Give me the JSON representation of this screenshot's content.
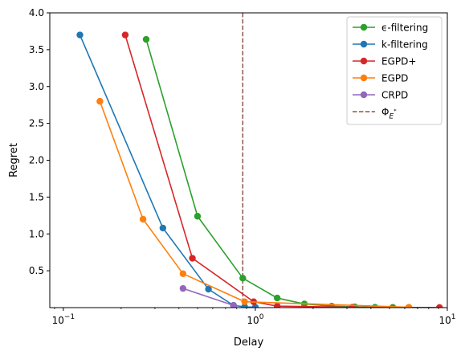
{
  "chart_data": {
    "type": "line",
    "title": "",
    "xlabel": "Delay",
    "ylabel": "Regret",
    "xscale": "log",
    "xlim": [
      0.085,
      10
    ],
    "ylim": [
      0,
      4.0
    ],
    "grid": false,
    "legend_position": "top-right",
    "xtick_labels": [
      {
        "value": 0.1,
        "base": "10",
        "exp": "−1"
      },
      {
        "value": 1,
        "base": "10",
        "exp": "0"
      },
      {
        "value": 10,
        "base": "10",
        "exp": "1"
      }
    ],
    "yticks": [
      0.5,
      1.0,
      1.5,
      2.0,
      2.5,
      3.0,
      3.5,
      4.0
    ],
    "ytick_labels": [
      "0.5",
      "1.0",
      "1.5",
      "2.0",
      "2.5",
      "3.0",
      "3.5",
      "4.0"
    ],
    "series": [
      {
        "name": "ϵ-filtering",
        "color": "#2ca02c",
        "x": [
          0.27,
          0.5,
          0.86,
          1.3,
          1.8,
          2.5,
          3.3,
          4.2,
          5.2,
          6.3,
          9.1
        ],
        "y": [
          3.64,
          1.24,
          0.4,
          0.13,
          0.05,
          0.02,
          0.01,
          0.005,
          0.003,
          0.002,
          0.001
        ]
      },
      {
        "name": "k-filtering",
        "color": "#1f77b4",
        "x": [
          0.122,
          0.33,
          0.57,
          0.77,
          0.88,
          1.0
        ],
        "y": [
          3.7,
          1.08,
          0.25,
          0.03,
          0.01,
          0.005
        ]
      },
      {
        "name": "EGPD+",
        "color": "#d62728",
        "x": [
          0.21,
          0.47,
          0.98,
          1.3,
          3.2,
          9.1
        ],
        "y": [
          3.7,
          0.67,
          0.08,
          0.02,
          0.005,
          0.001
        ]
      },
      {
        "name": "EGPD",
        "color": "#ff7f0e",
        "x": [
          0.155,
          0.26,
          0.42,
          0.88,
          6.3
        ],
        "y": [
          2.8,
          1.2,
          0.46,
          0.08,
          0.005
        ]
      },
      {
        "name": "CRPD",
        "color": "#9467bd",
        "x": [
          0.42,
          0.77
        ],
        "y": [
          0.26,
          0.03
        ]
      }
    ],
    "vline": {
      "name": "Φ",
      "subscript": "E",
      "superscript": "*",
      "x": 0.86,
      "color": "#8c564b",
      "style": "dashed"
    }
  }
}
